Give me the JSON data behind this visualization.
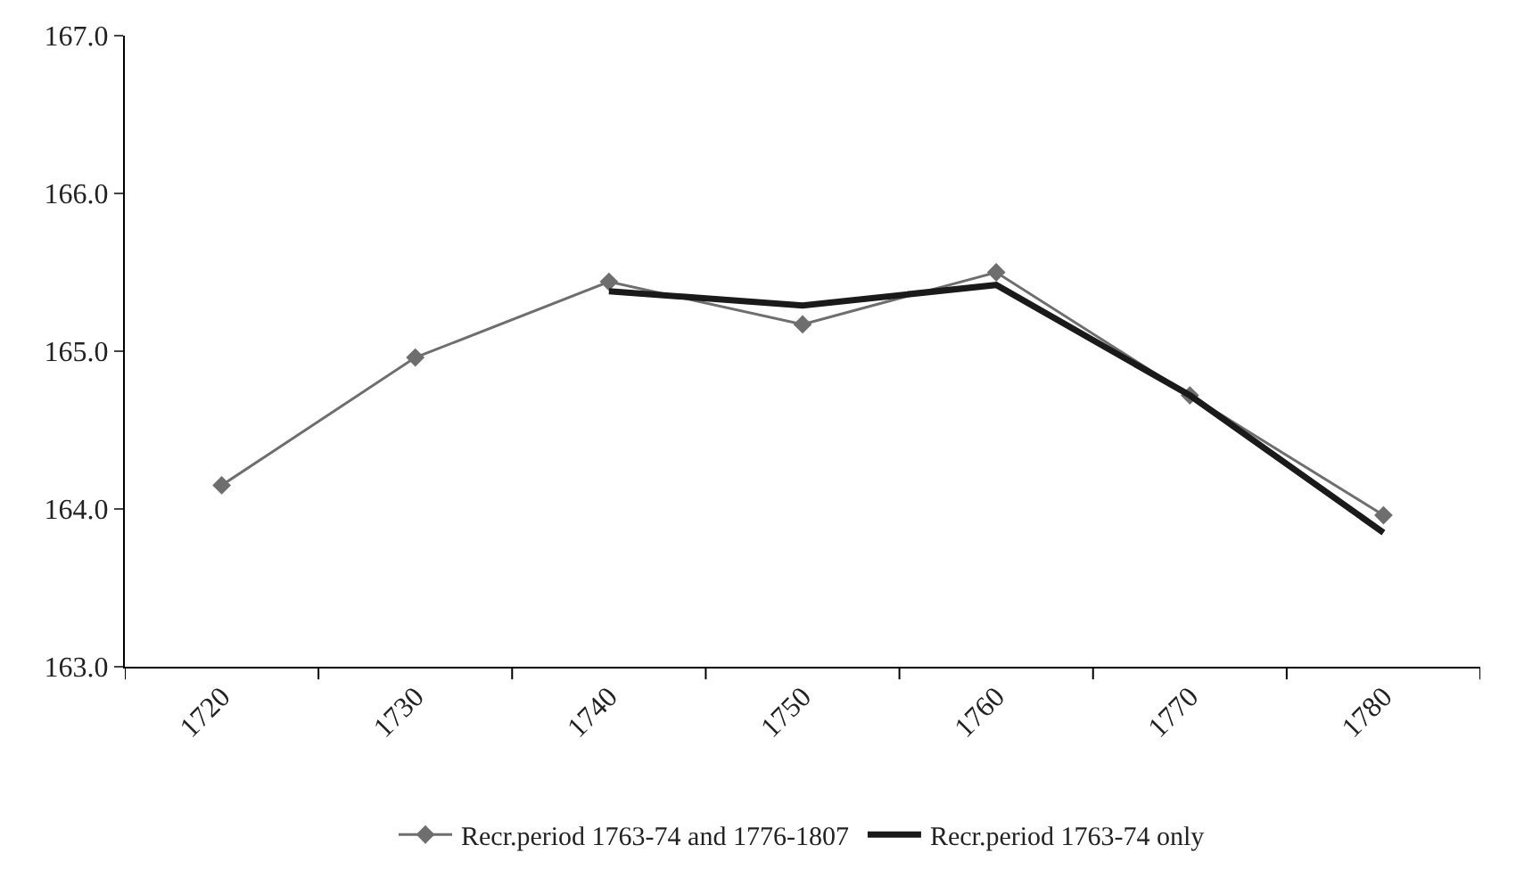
{
  "chart_data": {
    "type": "line",
    "categories": [
      "1720",
      "1730",
      "1740",
      "1750",
      "1760",
      "1770",
      "1780"
    ],
    "series": [
      {
        "name": "Recr.period 1763-74 and 1776-1807",
        "color": "#6e6e6e",
        "marker": "diamond",
        "values": [
          164.15,
          164.96,
          165.44,
          165.17,
          165.5,
          164.72,
          163.96
        ]
      },
      {
        "name": "Recr.period 1763-74 only",
        "color": "#1a1a1a",
        "marker": "none",
        "values": [
          null,
          null,
          165.38,
          165.29,
          165.42,
          164.72,
          163.85
        ]
      }
    ],
    "ylim": [
      163,
      167
    ],
    "yticks": [
      {
        "value": 163,
        "label": "163.0"
      },
      {
        "value": 164,
        "label": "164.0"
      },
      {
        "value": 165,
        "label": "165.0"
      },
      {
        "value": 166,
        "label": "166.0"
      },
      {
        "value": 167,
        "label": "167.0"
      }
    ],
    "legend": "bottom"
  }
}
